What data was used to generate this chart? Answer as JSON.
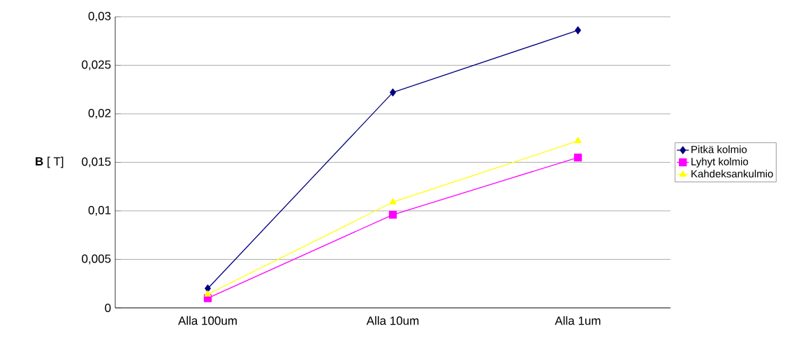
{
  "chart_data": {
    "type": "line",
    "ylabel": "**B** [ T]",
    "categories": [
      "Alla 100um",
      "Alla 10um",
      "Alla 1um"
    ],
    "series": [
      {
        "name": "Pitkä kolmio",
        "color": "#000080",
        "marker": "diamond",
        "values": [
          0.002,
          0.0222,
          0.0286
        ]
      },
      {
        "name": "Lyhyt kolmio",
        "color": "#ff00ff",
        "marker": "square",
        "values": [
          0.001,
          0.0096,
          0.0155
        ]
      },
      {
        "name": "Kahdeksankulmio",
        "color": "#ffff00",
        "marker": "triangle",
        "values": [
          0.0014,
          0.0109,
          0.0172
        ]
      }
    ],
    "ylim": [
      0,
      0.03
    ],
    "yticks": [
      {
        "value": 0,
        "label": "0"
      },
      {
        "value": 0.005,
        "label": "0,005"
      },
      {
        "value": 0.01,
        "label": "0,01"
      },
      {
        "value": 0.015,
        "label": "0,015"
      },
      {
        "value": 0.02,
        "label": "0,02"
      },
      {
        "value": 0.025,
        "label": "0,025"
      },
      {
        "value": 0.03,
        "label": "0,03"
      }
    ],
    "grid": "y",
    "legend": "right",
    "line_style": "solid"
  }
}
